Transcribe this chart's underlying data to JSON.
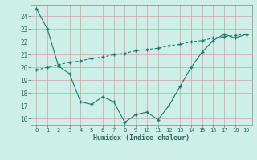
{
  "line1_x": [
    0,
    1,
    2,
    3,
    4,
    5,
    6,
    7,
    8,
    9,
    10,
    11,
    12,
    13,
    14,
    15,
    16,
    17,
    18,
    19
  ],
  "line1_y": [
    24.6,
    23.0,
    20.1,
    19.5,
    17.3,
    17.1,
    17.7,
    17.3,
    15.7,
    16.3,
    16.5,
    15.9,
    17.0,
    18.5,
    20.0,
    21.2,
    22.1,
    22.6,
    22.3,
    22.6
  ],
  "line2_x": [
    0,
    1,
    2,
    3,
    4,
    5,
    6,
    7,
    8,
    9,
    10,
    11,
    12,
    13,
    14,
    15,
    16,
    17,
    18,
    19
  ],
  "line2_y": [
    19.8,
    20.0,
    20.2,
    20.4,
    20.5,
    20.7,
    20.8,
    21.0,
    21.1,
    21.3,
    21.4,
    21.5,
    21.7,
    21.8,
    22.0,
    22.1,
    22.3,
    22.4,
    22.5,
    22.6
  ],
  "line_color": "#1a7a6e",
  "bg_color": "#ceeee8",
  "grid_color": "#b8dbd6",
  "xlabel": "Humidex (Indice chaleur)",
  "xlim": [
    -0.5,
    19.5
  ],
  "ylim": [
    15.5,
    24.9
  ],
  "yticks": [
    16,
    17,
    18,
    19,
    20,
    21,
    22,
    23,
    24
  ],
  "xticks": [
    0,
    1,
    2,
    3,
    4,
    5,
    6,
    7,
    8,
    9,
    10,
    11,
    12,
    13,
    14,
    15,
    16,
    17,
    18,
    19
  ]
}
